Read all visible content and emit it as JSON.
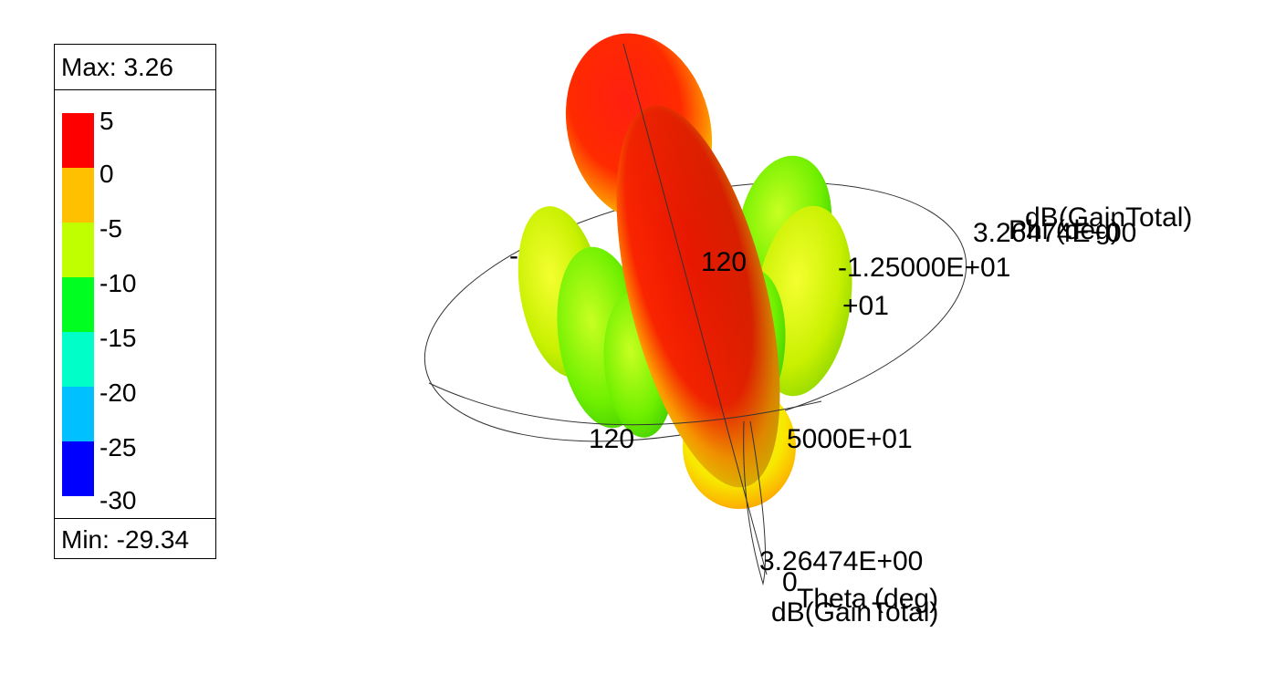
{
  "legend": {
    "max_label": "Max: 3.26",
    "min_label": "Min: -29.34",
    "ticks": [
      "5",
      "0",
      "-5",
      "-10",
      "-15",
      "-20",
      "-25",
      "-30"
    ],
    "colors": [
      "#ff0000",
      "#ffc000",
      "#c0ff00",
      "#00ff20",
      "#00ffc8",
      "#00c0ff",
      "#0000ff"
    ]
  },
  "plot": {
    "quantity": "dB(GainTotal)",
    "theta_label": "Theta (deg)",
    "phi_label": "Phi (deg)",
    "max_value": "3.26474E+00",
    "ring_value": "-1.25000E+01",
    "ring_value_partial": "+01",
    "ring_value_partial_low": "5000E+01",
    "ring_value_partial_left": "-",
    "angle_120": "120",
    "angle_0": "0"
  },
  "colors": {
    "lobe_high": "#ff0000",
    "lobe_mid": "#ffee00",
    "lobe_low": "#44ee00"
  }
}
